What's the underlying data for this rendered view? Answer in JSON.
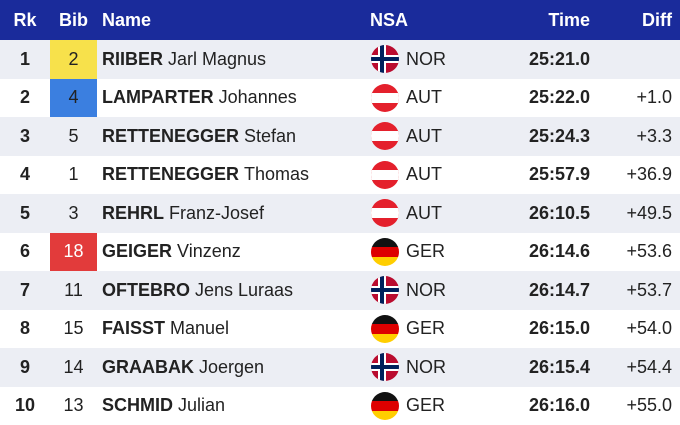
{
  "table": {
    "header": [
      "Rk",
      "Bib",
      "Name",
      "NSA",
      "Time",
      "Diff"
    ],
    "rows": [
      {
        "rank": "1",
        "bib": "2",
        "bib_color": "#f7e14b",
        "last": "RIIBER",
        "first": "Jarl Magnus",
        "nsa": "NOR",
        "time": "25:21.0"
      },
      {
        "rank": "2",
        "bib": "4",
        "bib_color": "#3b7fe0",
        "last": "LAMPARTER",
        "first": "Johannes",
        "nsa": "AUT",
        "time": "25:22.0",
        "diff": "+1.0"
      },
      {
        "rank": "3",
        "bib": "5",
        "last": "RETTENEGGER",
        "first": "Stefan",
        "nsa": "AUT",
        "time": "25:24.3",
        "diff": "+3.3"
      },
      {
        "rank": "4",
        "bib": "1",
        "last": "RETTENEGGER",
        "first": "Thomas",
        "nsa": "AUT",
        "time": "25:57.9",
        "diff": "+36.9"
      },
      {
        "rank": "5",
        "bib": "3",
        "last": "REHRL",
        "first": "Franz-Josef",
        "nsa": "AUT",
        "time": "26:10.5",
        "diff": "+49.5"
      },
      {
        "rank": "6",
        "bib": "18",
        "bib_color": "#e23b3b",
        "last": "GEIGER",
        "first": "Vinzenz",
        "nsa": "GER",
        "time": "26:14.6",
        "diff": "+53.6"
      },
      {
        "rank": "7",
        "bib": "11",
        "last": "OFTEBRO",
        "first": "Jens Luraas",
        "nsa": "NOR",
        "time": "26:14.7",
        "diff": "+53.7"
      },
      {
        "rank": "8",
        "bib": "15",
        "last": "FAISST",
        "first": "Manuel",
        "nsa": "GER",
        "time": "26:15.0",
        "diff": "+54.0"
      },
      {
        "rank": "9",
        "bib": "14",
        "last": "GRAABAK",
        "first": "Joergen",
        "nsa": "NOR",
        "time": "26:15.4",
        "diff": "+54.4"
      },
      {
        "rank": "10",
        "bib": "13",
        "last": "SCHMID",
        "first": "Julian",
        "nsa": "GER",
        "time": "26:16.0",
        "diff": "+55.0"
      }
    ]
  }
}
